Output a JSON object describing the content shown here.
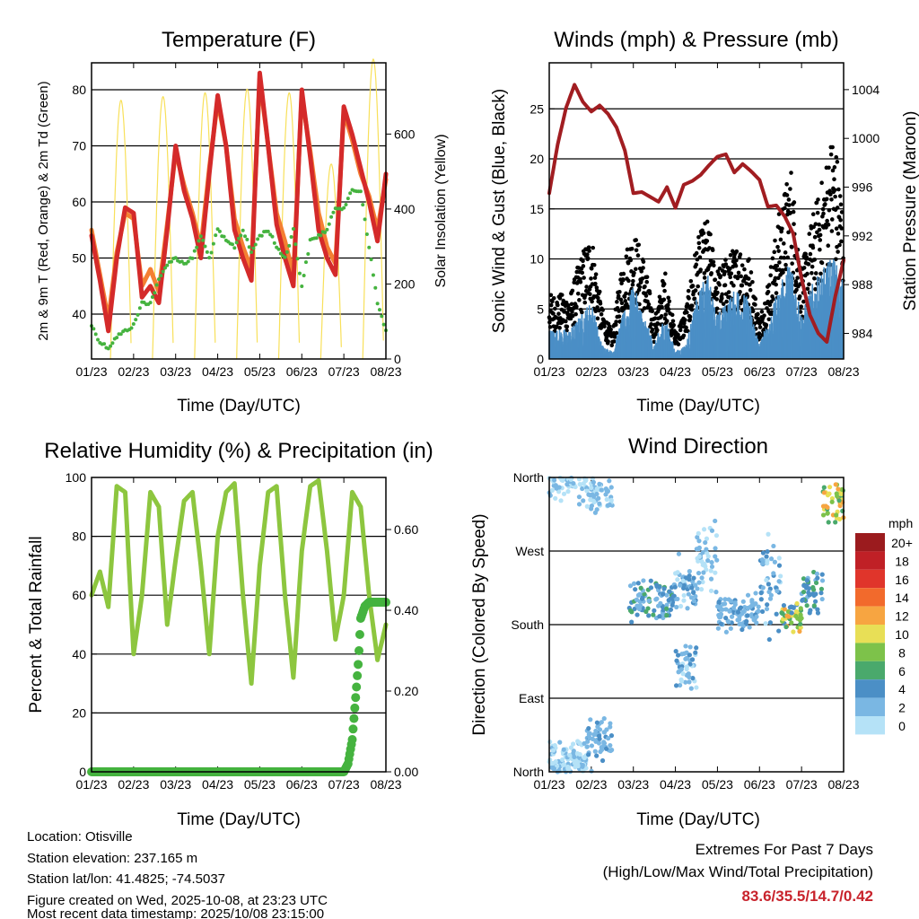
{
  "chart_data": [
    {
      "type": "line",
      "title": "Temperature (F)",
      "xlabel": "Time (Day/UTC)",
      "ylabel": "2m & 9m T (Red, Orange) & 2m Td (Green)",
      "y2label": "Solar Insolation (Yellow)",
      "x_ticks": [
        "01/23",
        "02/23",
        "03/23",
        "04/23",
        "05/23",
        "06/23",
        "07/23",
        "08/23"
      ],
      "ylim": [
        32,
        84.8
      ],
      "y_ticks": [
        40,
        50,
        60,
        70,
        80
      ],
      "y2lim": [
        0,
        790
      ],
      "y2_ticks": [
        0,
        200,
        400,
        600
      ],
      "sample_step_days": 0.2,
      "series": [
        {
          "name": "2m T",
          "color": "#d42a2a",
          "values": [
            54,
            46,
            37,
            50,
            59,
            58,
            43,
            45,
            42,
            55,
            70,
            62,
            57,
            50,
            65,
            79,
            70,
            55,
            50,
            46,
            83,
            70,
            56,
            50,
            45,
            80,
            68,
            55,
            50,
            47,
            77,
            72,
            66,
            60,
            53,
            65,
            58
          ]
        },
        {
          "name": "9m T",
          "color": "#f47f32",
          "values": [
            55,
            47,
            39,
            51,
            58,
            57,
            45,
            48,
            44,
            56,
            69,
            63,
            58,
            52,
            66,
            78,
            70,
            57,
            52,
            48,
            82,
            70,
            58,
            53,
            47,
            79,
            69,
            58,
            52,
            49,
            76,
            71,
            65,
            61,
            55,
            64,
            58
          ]
        },
        {
          "name": "2m Td",
          "color": "#45b33f",
          "values": [
            38,
            35,
            34,
            36,
            37,
            38,
            42,
            42,
            46,
            49,
            50,
            49,
            50,
            54,
            50,
            55,
            53,
            52,
            55,
            51,
            54,
            55,
            52,
            50,
            55,
            45,
            53,
            54,
            55,
            59,
            59,
            62,
            62,
            52,
            42,
            37,
            37
          ]
        }
      ],
      "solar": {
        "name": "Solar Insolation",
        "color": "#f8e05a",
        "daily_peaks": [
          690,
          700,
          710,
          720,
          710,
          520,
          800
        ],
        "noon_day_fraction": 0.7
      }
    },
    {
      "type": "scatter",
      "title": "Winds (mph) & Pressure (mb)",
      "xlabel": "Time (Day/UTC)",
      "ylabel": "Sonic Wind & Gust (Blue, Black)",
      "y2label": "Station Pressure (Maroon)",
      "x_ticks": [
        "01/23",
        "02/23",
        "03/23",
        "04/23",
        "05/23",
        "06/23",
        "07/23",
        "08/23"
      ],
      "ylim": [
        0,
        29.6
      ],
      "y_ticks": [
        0,
        5,
        10,
        15,
        20,
        25
      ],
      "y2lim": [
        981.9,
        1006.2
      ],
      "y2_ticks": [
        984,
        988,
        992,
        996,
        1000,
        1004
      ],
      "sample_step_days": 0.25,
      "sustained": {
        "color": "#4b8fc6",
        "values": [
          2,
          2,
          2,
          3,
          4,
          1,
          0.5,
          3,
          5,
          3,
          1,
          3,
          0.5,
          1,
          4,
          6,
          3,
          4,
          5,
          4,
          1,
          3,
          5,
          7,
          3,
          5,
          6,
          7,
          5
        ]
      },
      "gust": {
        "color": "#000000",
        "values": [
          5,
          5,
          5,
          8,
          10,
          4,
          2,
          8,
          10,
          8,
          3,
          7,
          2,
          4,
          9,
          11,
          7,
          8,
          9,
          8,
          3,
          7,
          12,
          15,
          7,
          11,
          14,
          18,
          12
        ]
      },
      "pressure": {
        "color": "#a11d21",
        "step_days": 0.2,
        "values": [
          995.5,
          999.5,
          1002.5,
          1004.4,
          1003,
          1002.2,
          1002.7,
          1002,
          1000.9,
          999,
          995.5,
          995.6,
          995.2,
          994.8,
          996,
          994.3,
          996.2,
          996.5,
          997,
          997.8,
          998.5,
          998.7,
          997.2,
          997.9,
          997.3,
          996.6,
          994.4,
          994.5,
          993.6,
          992.2,
          988.5,
          985.5,
          984,
          983.3,
          987,
          990,
          993
        ]
      }
    },
    {
      "type": "line",
      "title": "Relative Humidity (%) & Precipitation (in)",
      "xlabel": "Time (Day/UTC)",
      "ylabel": "Percent & Total Rainfall",
      "x_ticks": [
        "01/23",
        "02/23",
        "03/23",
        "04/23",
        "05/23",
        "06/23",
        "07/23",
        "08/23"
      ],
      "ylim": [
        0,
        100
      ],
      "y_ticks": [
        0,
        20,
        40,
        60,
        80,
        100
      ],
      "y2lim": [
        0,
        0.729
      ],
      "y2_ticks": [
        "0.00",
        "0.20",
        "0.40",
        "0.60"
      ],
      "rh": {
        "color": "#8dc63f",
        "step_days": 0.2,
        "values": [
          60,
          68,
          56,
          97,
          95,
          40,
          60,
          95,
          90,
          50,
          72,
          92,
          95,
          70,
          40,
          80,
          95,
          98,
          60,
          30,
          70,
          95,
          97,
          60,
          32,
          75,
          97,
          99,
          75,
          45,
          60,
          95,
          90,
          60,
          38,
          50
        ]
      },
      "precip": {
        "color": "#45b33f",
        "points": [
          [
            0,
            0
          ],
          [
            6.0,
            0
          ],
          [
            6.1,
            0.02
          ],
          [
            6.2,
            0.08
          ],
          [
            6.3,
            0.21
          ],
          [
            6.35,
            0.28
          ],
          [
            6.4,
            0.38
          ],
          [
            6.5,
            0.41
          ],
          [
            6.6,
            0.42
          ],
          [
            7.0,
            0.42
          ]
        ]
      }
    },
    {
      "type": "scatter",
      "title": "Wind Direction",
      "xlabel": "Time (Day/UTC)",
      "ylabel": "Direction (Colored By Speed)",
      "x_ticks": [
        "01/23",
        "02/23",
        "03/23",
        "04/23",
        "05/23",
        "06/23",
        "07/23",
        "08/23"
      ],
      "y_ticks": [
        "North",
        "East",
        "South",
        "West",
        "North"
      ],
      "ylim": [
        0,
        360
      ],
      "clusters": [
        {
          "days": [
            0,
            0.9
          ],
          "dir": 355,
          "spread": 30,
          "speed": [
            0,
            3
          ]
        },
        {
          "days": [
            0,
            0.9
          ],
          "dir": 15,
          "spread": 25,
          "speed": [
            0,
            3
          ]
        },
        {
          "days": [
            0.9,
            1.5
          ],
          "dir": 40,
          "spread": 30,
          "speed": [
            2,
            5
          ]
        },
        {
          "days": [
            0.9,
            1.5
          ],
          "dir": 340,
          "spread": 25,
          "speed": [
            1,
            4
          ]
        },
        {
          "days": [
            1.9,
            3.0
          ],
          "dir": 210,
          "spread": 30,
          "speed": [
            2,
            7
          ]
        },
        {
          "days": [
            3.0,
            3.5
          ],
          "dir": 230,
          "spread": 40,
          "speed": [
            1,
            6
          ]
        },
        {
          "days": [
            3.0,
            3.5
          ],
          "dir": 130,
          "spread": 30,
          "speed": [
            1,
            5
          ]
        },
        {
          "days": [
            3.5,
            4.0
          ],
          "dir": 260,
          "spread": 50,
          "speed": [
            0,
            4
          ]
        },
        {
          "days": [
            4.0,
            5.0
          ],
          "dir": 195,
          "spread": 25,
          "speed": [
            2,
            5
          ]
        },
        {
          "days": [
            5.0,
            5.5
          ],
          "dir": 230,
          "spread": 70,
          "speed": [
            1,
            6
          ]
        },
        {
          "days": [
            5.5,
            6.0
          ],
          "dir": 190,
          "spread": 20,
          "speed": [
            5,
            13
          ]
        },
        {
          "days": [
            6.0,
            6.5
          ],
          "dir": 220,
          "spread": 35,
          "speed": [
            3,
            8
          ]
        },
        {
          "days": [
            6.5,
            7.0
          ],
          "dir": 330,
          "spread": 30,
          "speed": [
            6,
            14
          ]
        }
      ],
      "legend": {
        "title": "mph",
        "labels": [
          "20+",
          "18",
          "16",
          "14",
          "12",
          "10",
          "8",
          "6",
          "4",
          "2",
          "0"
        ],
        "colors": [
          "#9b1b1e",
          "#c02026",
          "#e0352b",
          "#f26a2c",
          "#f7a541",
          "#e8df56",
          "#7dc24a",
          "#4aa96c",
          "#4b8fc6",
          "#7ab7e3",
          "#b5e2f7"
        ]
      }
    }
  ],
  "info": {
    "location": "Location: Otisville",
    "elevation": "Station elevation: 237.165 m",
    "latlon": "Station lat/lon: 41.4825; -74.5037",
    "created": "Figure created on Wed, 2025-10-08, at 23:23 UTC",
    "recent": "Most recent data timestamp: 2025/10/08 23:15:00"
  },
  "extremes": {
    "title": "Extremes For Past 7 Days",
    "subtitle": "(High/Low/Max Wind/Total Precipitation)",
    "values": "83.6/35.5/14.7/0.42"
  }
}
